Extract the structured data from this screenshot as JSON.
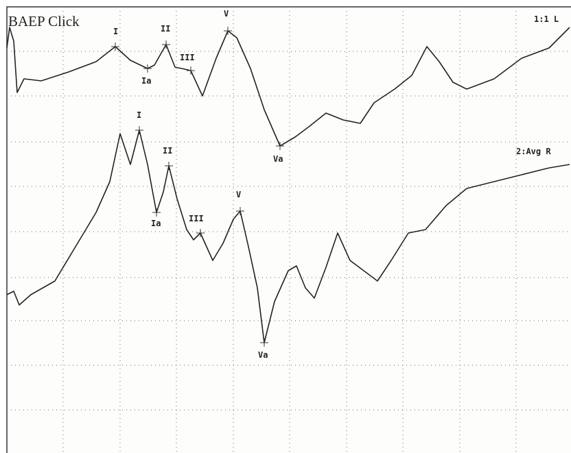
{
  "title": "BAEP Click",
  "traces": [
    {
      "label": "1:1 L",
      "peaks": [
        "I",
        "Ia",
        "II",
        "III",
        "V",
        "Va"
      ]
    },
    {
      "label": "2:Avg R",
      "peaks": [
        "I",
        "Ia",
        "II",
        "III",
        "V",
        "Va"
      ]
    }
  ]
}
